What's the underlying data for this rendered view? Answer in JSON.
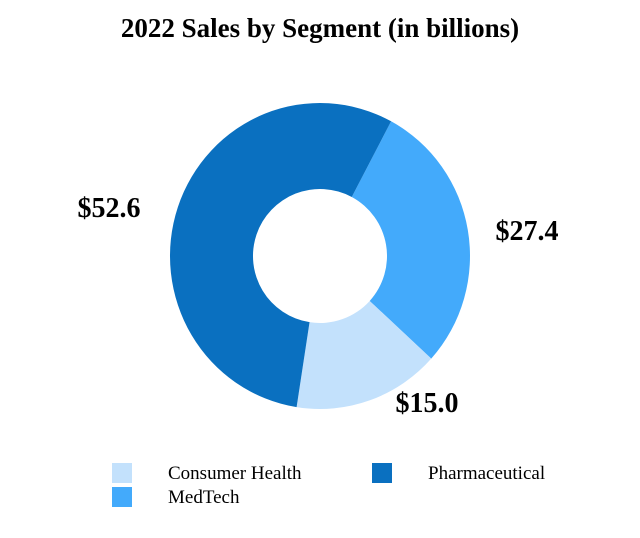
{
  "page": {
    "background_color": "#ffffff",
    "text_color": "#000000"
  },
  "chart_data": {
    "type": "donut",
    "title": "2022 Sales by Segment (in billions)",
    "total": 95.0,
    "donut_hole_ratio": 0.44,
    "start_angle_deg": 28.3,
    "clockwise_order": [
      "MedTech",
      "Consumer Health",
      "Pharmaceutical"
    ],
    "legend_position": "bottom",
    "segments": [
      {
        "label": "Consumer Health",
        "value": 15.0,
        "data_label": "$15.0",
        "color": "#C3E1FC"
      },
      {
        "label": "MedTech",
        "value": 27.4,
        "data_label": "$27.4",
        "color": "#43AAFB"
      },
      {
        "label": "Pharmaceutical",
        "value": 52.6,
        "data_label": "$52.6",
        "color": "#0A70C0"
      }
    ]
  }
}
